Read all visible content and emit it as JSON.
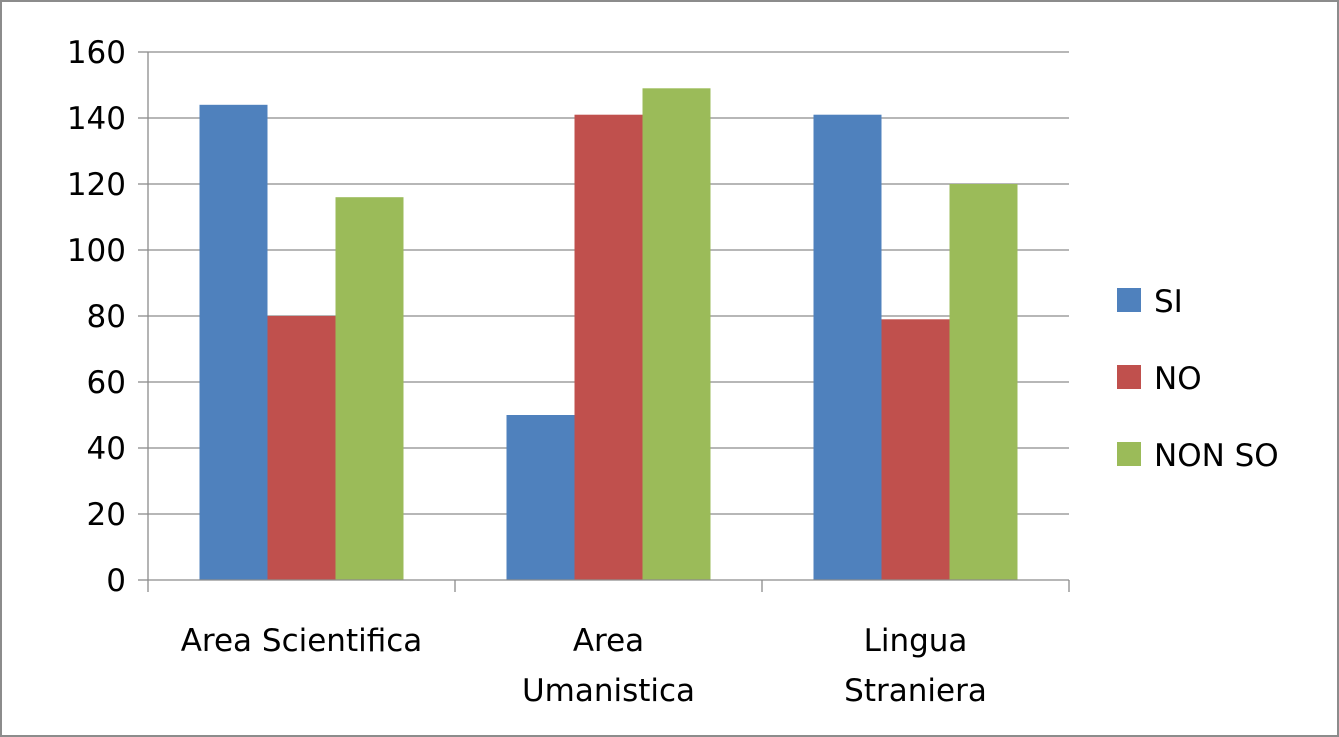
{
  "chart_data": {
    "type": "bar",
    "title": "",
    "xlabel": "",
    "ylabel": "",
    "ylim": [
      0,
      160
    ],
    "yticks": [
      0,
      20,
      40,
      60,
      80,
      100,
      120,
      140,
      160
    ],
    "grid": true,
    "legend_position": "right",
    "categories": [
      [
        "Area Scientifica"
      ],
      [
        "Area",
        "Umanistica"
      ],
      [
        "Lingua",
        "Straniera"
      ]
    ],
    "series": [
      {
        "name": "SI",
        "color": "#4F81BD",
        "values": [
          144,
          50,
          141
        ]
      },
      {
        "name": "NO",
        "color": "#C0504D",
        "values": [
          80,
          141,
          79
        ]
      },
      {
        "name": "NON SO",
        "color": "#9BBB59",
        "values": [
          116,
          149,
          120
        ]
      }
    ]
  }
}
